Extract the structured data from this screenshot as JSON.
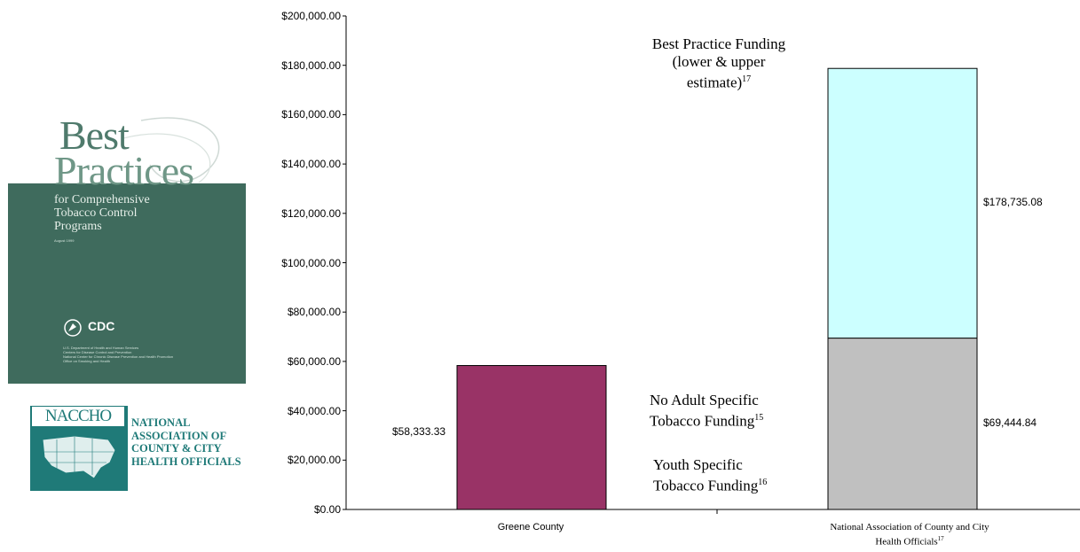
{
  "cover": {
    "title_line1": "Best",
    "title_line2": "Practices",
    "subtitle": [
      "for Comprehensive",
      "Tobacco Control",
      "Programs"
    ],
    "date": "August 1999",
    "agency": "CDC",
    "fine_print": [
      "U.S. Department of Health and Human Services",
      "Centers for Disease Control and Prevention",
      "National Center for Chronic Disease Prevention and Health Promotion",
      "Office on Smoking and Health"
    ]
  },
  "naccho": {
    "acronym": "NACCHO",
    "lines": [
      "NATIONAL",
      "ASSOCIATION OF",
      "COUNTY & CITY",
      "HEALTH OFFICIALS"
    ]
  },
  "chart_data": {
    "type": "bar",
    "stacked": true,
    "categories": [
      "Greene County",
      "National Association of County and City Health Officials"
    ],
    "category_superscripts": [
      "",
      "17"
    ],
    "ylim": [
      0,
      200000
    ],
    "y_ticks": [
      "$0.00",
      "$20,000.00",
      "$40,000.00",
      "$60,000.00",
      "$80,000.00",
      "$100,000.00",
      "$120,000.00",
      "$140,000.00",
      "$160,000.00",
      "$180,000.00",
      "$200,000.00"
    ],
    "bars": [
      {
        "category": "Greene County",
        "value": 58333.33,
        "label": "$58,333.33",
        "color": "#993366"
      },
      {
        "category": "National Association of County and City Health Officials",
        "segments": [
          {
            "value": 69444.84,
            "label": "$69,444.84",
            "color": "#c0c0c0"
          },
          {
            "top": 178735.08,
            "label": "$178,735.08",
            "color": "#ccffff"
          }
        ]
      }
    ],
    "annotations": [
      {
        "lines": [
          "Best Practice Funding",
          "(lower & upper",
          "estimate)"
        ],
        "sup": "17"
      },
      {
        "lines": [
          "No Adult Specific",
          "Tobacco Funding"
        ],
        "sup": "15"
      },
      {
        "lines": [
          "Youth Specific",
          "Tobacco Funding"
        ],
        "sup": "16"
      }
    ],
    "grid": false,
    "legend": "none"
  }
}
